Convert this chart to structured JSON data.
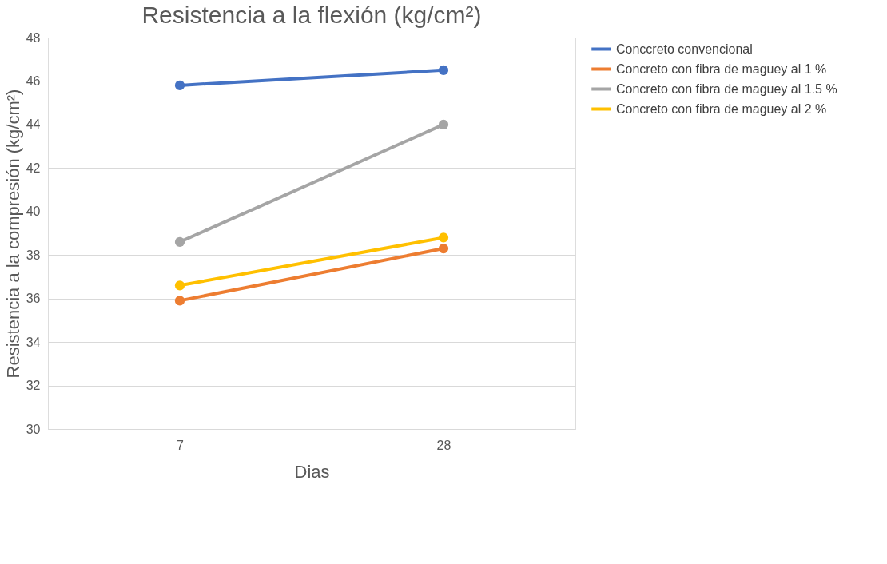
{
  "chart_data": {
    "type": "line",
    "title": "Resistencia a la flexión (kg/cm²)",
    "xlabel": "Dias",
    "ylabel": "Resistencia a la compresión (kg/cm²)",
    "categories": [
      "7",
      "28"
    ],
    "series": [
      {
        "name": "Conccreto convencional",
        "color": "#4472c4",
        "values": [
          45.8,
          46.5
        ]
      },
      {
        "name": "Concreto con fibra de maguey al 1 %",
        "color": "#ed7d31",
        "values": [
          35.9,
          38.3
        ]
      },
      {
        "name": "Concreto con fibra de maguey al 1.5 %",
        "color": "#a5a5a5",
        "values": [
          38.6,
          44.0
        ]
      },
      {
        "name": "Concreto con fibra de maguey al 2 %",
        "color": "#ffc000",
        "values": [
          36.6,
          38.8
        ]
      }
    ],
    "ylim": [
      30,
      48
    ],
    "yticks": [
      30,
      32,
      34,
      36,
      38,
      40,
      42,
      44,
      46,
      48
    ],
    "grid": "y",
    "legend": "right",
    "marker": "circle",
    "line_style": "solid"
  }
}
